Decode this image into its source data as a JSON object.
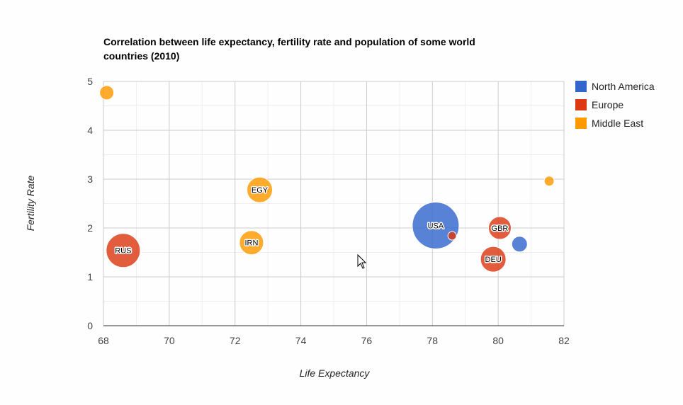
{
  "chart_data": {
    "type": "bubble",
    "title": "Correlation between life expectancy, fertility rate and population of some world countries (2010)",
    "title_lines": [
      "Correlation between life expectancy, fertility rate and population of some world",
      "countries (2010)"
    ],
    "xlabel": "Life Expectancy",
    "ylabel": "Fertility Rate",
    "xlim": [
      68,
      82
    ],
    "ylim": [
      0,
      5
    ],
    "x_ticks": [
      68,
      70,
      72,
      74,
      76,
      78,
      80,
      82
    ],
    "y_ticks": [
      0,
      1,
      2,
      3,
      4,
      5
    ],
    "grid": true,
    "legend_position": "right",
    "series": [
      {
        "name": "North America",
        "color": "#3366cc"
      },
      {
        "name": "Europe",
        "color": "#dc3912"
      },
      {
        "name": "Middle East",
        "color": "#ff9900"
      }
    ],
    "points": [
      {
        "label": "",
        "x": 68.1,
        "y": 4.77,
        "series": "Middle East",
        "size": 10
      },
      {
        "label": "RUS",
        "x": 68.6,
        "y": 1.54,
        "series": "Europe",
        "size": 24
      },
      {
        "label": "EGY",
        "x": 72.75,
        "y": 2.78,
        "series": "Middle East",
        "size": 18
      },
      {
        "label": "IRN",
        "x": 72.5,
        "y": 1.7,
        "series": "Middle East",
        "size": 17
      },
      {
        "label": "USA",
        "x": 78.1,
        "y": 2.05,
        "series": "North America",
        "size": 33
      },
      {
        "label": "",
        "x": 78.6,
        "y": 1.84,
        "series": "Europe",
        "size": 6
      },
      {
        "label": "GBR",
        "x": 80.05,
        "y": 2.0,
        "series": "Europe",
        "size": 16
      },
      {
        "label": "DEU",
        "x": 79.85,
        "y": 1.36,
        "series": "Europe",
        "size": 18
      },
      {
        "label": "",
        "x": 80.65,
        "y": 1.67,
        "series": "North America",
        "size": 11
      },
      {
        "label": "",
        "x": 81.55,
        "y": 2.96,
        "series": "Middle East",
        "size": 7
      }
    ]
  }
}
